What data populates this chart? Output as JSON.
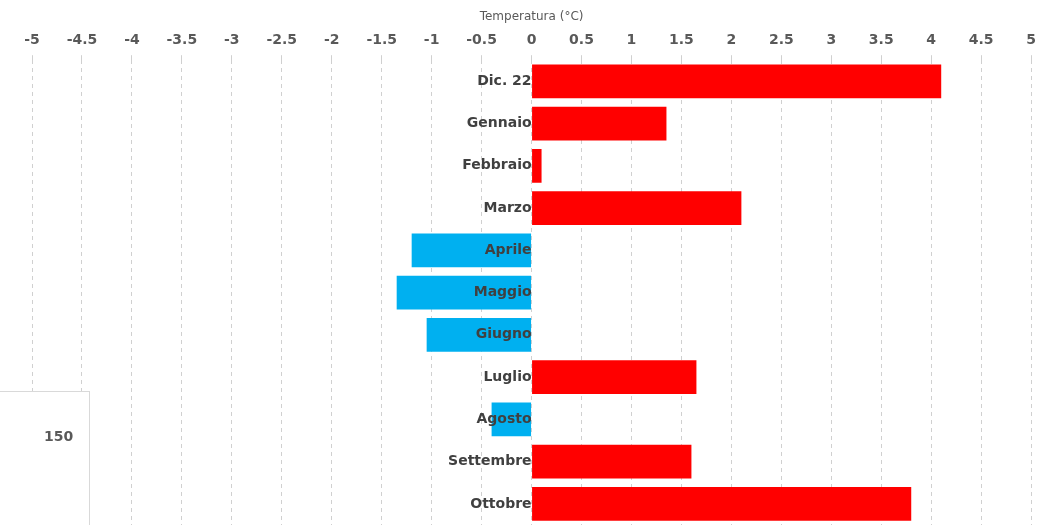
{
  "chart_data": [
    {
      "type": "bar",
      "orientation": "horizontal",
      "xlabel": "Temperatura (°C)",
      "categories": [
        "Dic. 22",
        "Gennaio",
        "Febbraio",
        "Marzo",
        "Aprile",
        "Maggio",
        "Giugno",
        "Luglio",
        "Agosto",
        "Settembre",
        "Ottobre"
      ],
      "values": [
        4.1,
        1.35,
        0.1,
        2.1,
        -1.2,
        -1.35,
        -1.05,
        1.65,
        -0.4,
        1.6,
        3.8
      ],
      "colors": [
        "#ff0000",
        "#ff0000",
        "#ff0000",
        "#ff0000",
        "#00b0f0",
        "#00b0f0",
        "#00b0f0",
        "#ff0000",
        "#00b0f0",
        "#ff0000",
        "#ff0000"
      ],
      "xlim": [
        -5,
        5
      ],
      "xticks": [
        -5,
        -4.5,
        -4,
        -3.5,
        -3,
        -2.5,
        -2,
        -1.5,
        -1,
        -0.5,
        0,
        0.5,
        1,
        1.5,
        2,
        2.5,
        3,
        3.5,
        4,
        4.5,
        5
      ],
      "grid": "x"
    },
    {
      "type": "other",
      "annotations": [
        "150"
      ]
    }
  ]
}
